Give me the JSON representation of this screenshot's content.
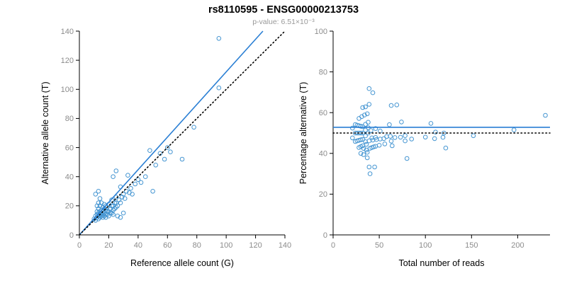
{
  "header": {
    "title": "rs8110595 - ENSG00000213753",
    "subtitle": "p-value: 6.51×10⁻³"
  },
  "colors": {
    "point": "#4696d2",
    "fit_line": "#2a7fd4",
    "identity_line": "#000000",
    "tick_label": "#8c8c8c",
    "axis": "#000000"
  },
  "chart_data": {
    "type": "scatter",
    "description": "Allele-specific expression: left panel alt vs ref allele counts with fitted line (solid blue) and identity line (dotted); right panel percentage alternative vs total reads with fitted mean (solid blue) at 52.8 and 50% reference (dotted).",
    "allele_points": [
      [
        10,
        11
      ],
      [
        11,
        10
      ],
      [
        11,
        13
      ],
      [
        11,
        28
      ],
      [
        12,
        12
      ],
      [
        12,
        14
      ],
      [
        12,
        16
      ],
      [
        12,
        20
      ],
      [
        13,
        11
      ],
      [
        13,
        13
      ],
      [
        13,
        15
      ],
      [
        13,
        18
      ],
      [
        13,
        22
      ],
      [
        13,
        30
      ],
      [
        14,
        12
      ],
      [
        14,
        14
      ],
      [
        14,
        16
      ],
      [
        14,
        20
      ],
      [
        14,
        25
      ],
      [
        15,
        13
      ],
      [
        15,
        15
      ],
      [
        15,
        17
      ],
      [
        15,
        22
      ],
      [
        16,
        12
      ],
      [
        16,
        14
      ],
      [
        16,
        16
      ],
      [
        16,
        19
      ],
      [
        17,
        13
      ],
      [
        17,
        15
      ],
      [
        17,
        18
      ],
      [
        17,
        21
      ],
      [
        18,
        12
      ],
      [
        18,
        14
      ],
      [
        18,
        17
      ],
      [
        18,
        20
      ],
      [
        19,
        14
      ],
      [
        19,
        16
      ],
      [
        19,
        19
      ],
      [
        20,
        13
      ],
      [
        20,
        16
      ],
      [
        20,
        21
      ],
      [
        21,
        15
      ],
      [
        21,
        18
      ],
      [
        22,
        15
      ],
      [
        22,
        20
      ],
      [
        22,
        24
      ],
      [
        23,
        14
      ],
      [
        23,
        17
      ],
      [
        23,
        20
      ],
      [
        23,
        40
      ],
      [
        24,
        18
      ],
      [
        24,
        22
      ],
      [
        25,
        19
      ],
      [
        25,
        22
      ],
      [
        25,
        26
      ],
      [
        25,
        44
      ],
      [
        26,
        13
      ],
      [
        26,
        20
      ],
      [
        27,
        24
      ],
      [
        28,
        12
      ],
      [
        28,
        22
      ],
      [
        28,
        33
      ],
      [
        29,
        26
      ],
      [
        30,
        15
      ],
      [
        30,
        28
      ],
      [
        31,
        25
      ],
      [
        32,
        30
      ],
      [
        33,
        41
      ],
      [
        34,
        29
      ],
      [
        35,
        32
      ],
      [
        36,
        28
      ],
      [
        38,
        35
      ],
      [
        40,
        38
      ],
      [
        42,
        36
      ],
      [
        45,
        40
      ],
      [
        48,
        58
      ],
      [
        50,
        30
      ],
      [
        52,
        48
      ],
      [
        55,
        56
      ],
      [
        58,
        52
      ],
      [
        60,
        60
      ],
      [
        62,
        57
      ],
      [
        70,
        52
      ],
      [
        78,
        74
      ],
      [
        95,
        101
      ],
      [
        95,
        135
      ]
    ],
    "panels": [
      {
        "id": "left",
        "xlabel": "Reference allele count (G)",
        "ylabel": "Alternative allele count (T)",
        "xlim": [
          0,
          140
        ],
        "ylim": [
          0,
          140
        ],
        "xticks": [
          0,
          20,
          40,
          60,
          80,
          100,
          120,
          140
        ],
        "yticks": [
          0,
          20,
          40,
          60,
          80,
          100,
          120,
          140
        ],
        "derive": "counts",
        "lines": [
          {
            "style": "solid",
            "color_key": "fit_line",
            "x1": 0,
            "y1": 0,
            "x2": 125,
            "y2": 140
          },
          {
            "style": "dotted",
            "color_key": "identity_line",
            "x1": 0,
            "y1": 0,
            "x2": 140,
            "y2": 140
          }
        ]
      },
      {
        "id": "right",
        "xlabel": "Total number of reads",
        "ylabel": "Percentage alternative (T)",
        "xlim": [
          0,
          235
        ],
        "ylim": [
          0,
          100
        ],
        "xticks": [
          0,
          50,
          100,
          150,
          200
        ],
        "yticks": [
          0,
          20,
          40,
          60,
          80,
          100
        ],
        "derive": "total_percentage",
        "lines": [
          {
            "style": "solid",
            "color_key": "fit_line",
            "x1": 0,
            "y1": 52.8,
            "x2": 235,
            "y2": 52.8
          },
          {
            "style": "dotted",
            "color_key": "identity_line",
            "x1": 0,
            "y1": 50,
            "x2": 235,
            "y2": 50
          }
        ]
      }
    ]
  }
}
